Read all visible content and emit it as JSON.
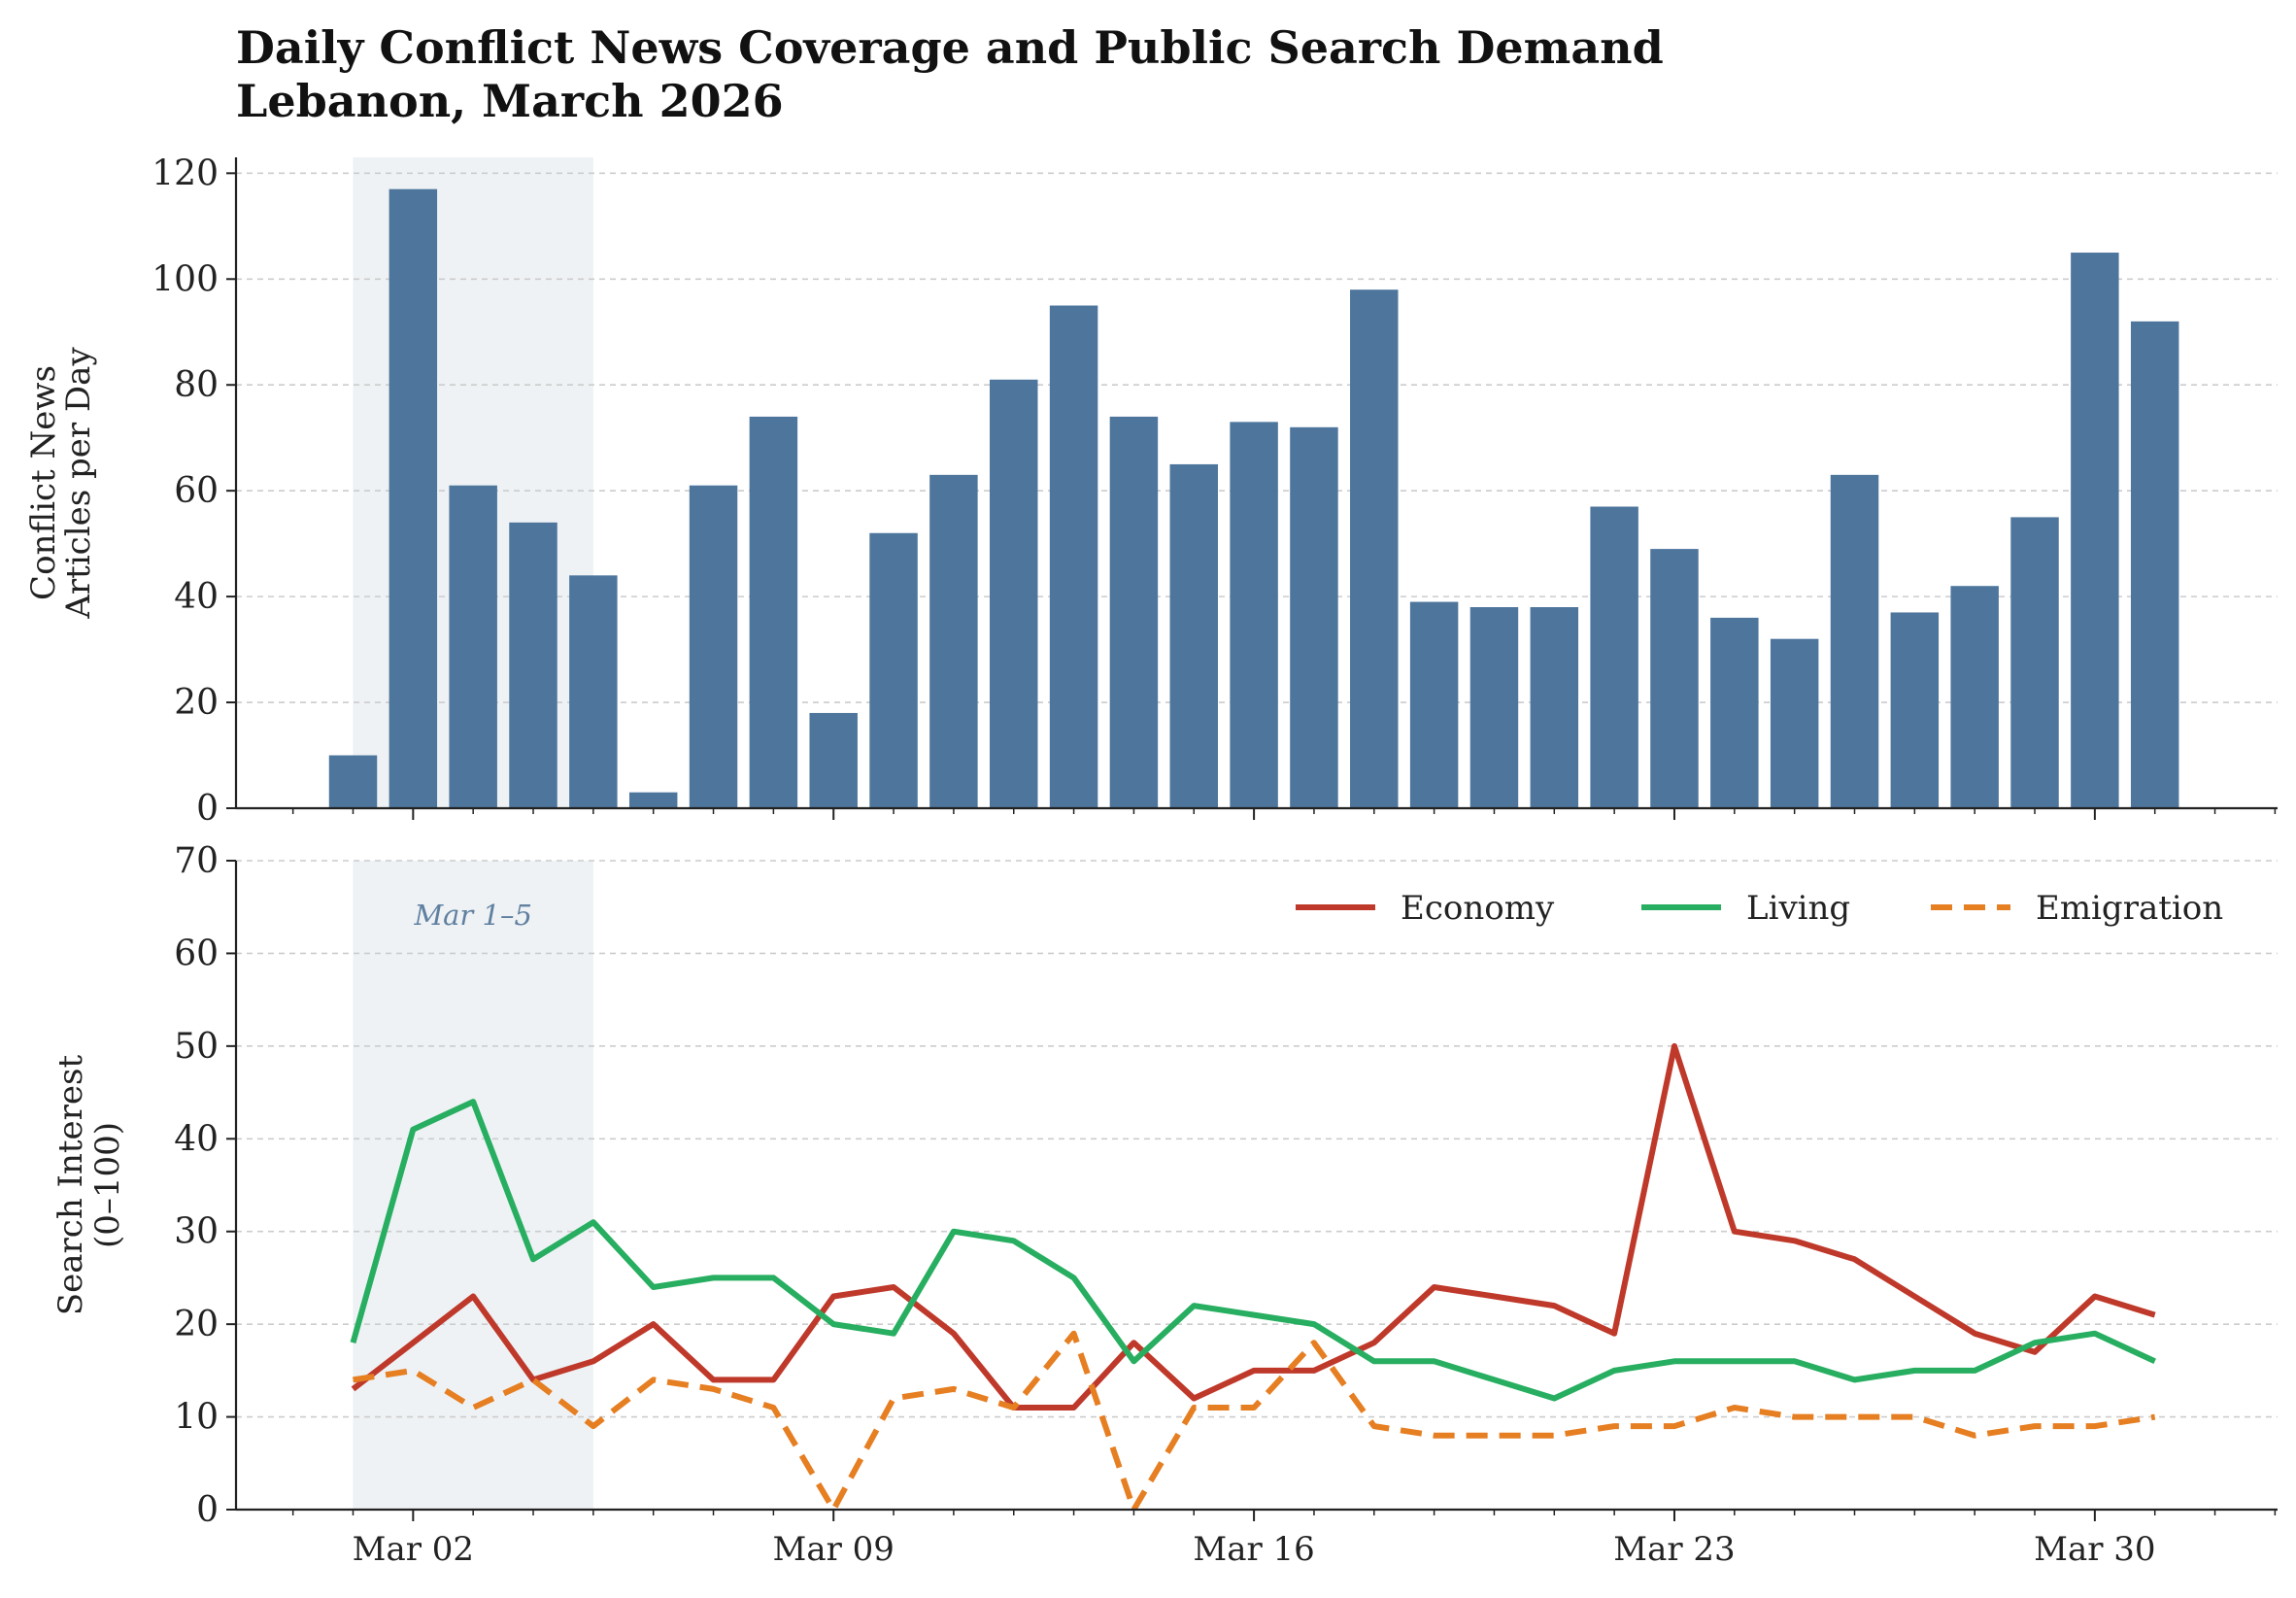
{
  "title": {
    "line1": "Daily Conflict News Coverage and Public Search Demand",
    "line2": "Lebanon, March 2026"
  },
  "colors": {
    "bar": "#4a739b",
    "shade": "#dde5ec",
    "economy": "#bf392b",
    "living": "#27ae60",
    "emigration": "#e67e22",
    "annotation": "#6080a0",
    "grid": "#cccccc"
  },
  "chart_data": [
    {
      "type": "bar",
      "ylabel": [
        "Conflict News",
        "Articles per Day"
      ],
      "ylim": [
        0,
        123
      ],
      "yticks": [
        "0",
        "20",
        "40",
        "60",
        "80",
        "100",
        "120"
      ],
      "grid": "horizontal-dashed",
      "shaded_range": [
        "2026-03-01",
        "2026-03-05"
      ],
      "x": [
        "2026-03-01",
        "2026-03-02",
        "2026-03-03",
        "2026-03-04",
        "2026-03-05",
        "2026-03-06",
        "2026-03-07",
        "2026-03-08",
        "2026-03-09",
        "2026-03-10",
        "2026-03-11",
        "2026-03-12",
        "2026-03-13",
        "2026-03-14",
        "2026-03-15",
        "2026-03-16",
        "2026-03-17",
        "2026-03-18",
        "2026-03-19",
        "2026-03-20",
        "2026-03-21",
        "2026-03-22",
        "2026-03-23",
        "2026-03-24",
        "2026-03-25",
        "2026-03-26",
        "2026-03-27",
        "2026-03-28",
        "2026-03-29",
        "2026-03-30",
        "2026-03-31"
      ],
      "values": [
        10,
        117,
        61,
        54,
        44,
        3,
        61,
        74,
        18,
        52,
        63,
        81,
        95,
        74,
        65,
        73,
        72,
        98,
        39,
        38,
        38,
        57,
        49,
        36,
        32,
        63,
        37,
        42,
        55,
        105,
        92
      ]
    },
    {
      "type": "line",
      "ylabel": [
        "Search Interest",
        "(0–100)"
      ],
      "ylim": [
        0,
        70
      ],
      "yticks": [
        "0",
        "10",
        "20",
        "30",
        "40",
        "50",
        "60",
        "70"
      ],
      "xticks": [
        "Mar 02",
        "Mar 09",
        "Mar 16",
        "Mar 23",
        "Mar 30"
      ],
      "grid": "horizontal-dashed",
      "legend": "top-right",
      "shaded_range": [
        "2026-03-01",
        "2026-03-05"
      ],
      "annotation": "Mar 1–5",
      "x": [
        "2026-03-01",
        "2026-03-02",
        "2026-03-03",
        "2026-03-04",
        "2026-03-05",
        "2026-03-06",
        "2026-03-07",
        "2026-03-08",
        "2026-03-09",
        "2026-03-10",
        "2026-03-11",
        "2026-03-12",
        "2026-03-13",
        "2026-03-14",
        "2026-03-15",
        "2026-03-16",
        "2026-03-17",
        "2026-03-18",
        "2026-03-19",
        "2026-03-20",
        "2026-03-21",
        "2026-03-22",
        "2026-03-23",
        "2026-03-24",
        "2026-03-25",
        "2026-03-26",
        "2026-03-27",
        "2026-03-28",
        "2026-03-29",
        "2026-03-30",
        "2026-03-31"
      ],
      "series": [
        {
          "name": "Economy",
          "style": "solid",
          "values": [
            13,
            18,
            23,
            14,
            16,
            20,
            14,
            14,
            23,
            24,
            19,
            11,
            11,
            18,
            12,
            15,
            15,
            18,
            24,
            23,
            22,
            19,
            50,
            30,
            29,
            27,
            23,
            19,
            17,
            23,
            21
          ]
        },
        {
          "name": "Living",
          "style": "solid",
          "values": [
            18,
            41,
            44,
            27,
            31,
            24,
            25,
            25,
            20,
            19,
            30,
            29,
            25,
            16,
            22,
            21,
            20,
            16,
            16,
            14,
            12,
            15,
            16,
            16,
            16,
            14,
            15,
            15,
            18,
            19,
            16
          ]
        },
        {
          "name": "Emigration",
          "style": "dashed",
          "values": [
            14,
            15,
            11,
            14,
            9,
            14,
            13,
            11,
            0,
            12,
            13,
            11,
            19,
            0,
            11,
            11,
            18,
            9,
            8,
            8,
            8,
            9,
            9,
            11,
            10,
            10,
            10,
            8,
            9,
            9,
            10
          ]
        }
      ]
    }
  ]
}
